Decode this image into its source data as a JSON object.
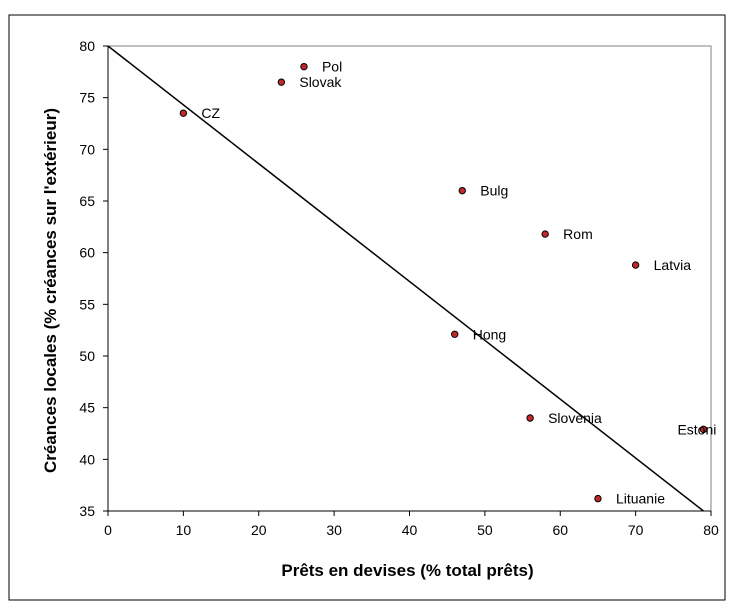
{
  "chart_data": {
    "type": "scatter",
    "title": "",
    "xlabel": "Prêts en devises (% total prêts)",
    "ylabel": "Créances locales (% créances sur l'extérieur)",
    "xlim": [
      0,
      80
    ],
    "ylim": [
      35,
      80
    ],
    "xticks": [
      "0",
      "10",
      "20",
      "30",
      "40",
      "50",
      "60",
      "70",
      "80"
    ],
    "yticks": [
      "35",
      "40",
      "45",
      "50",
      "55",
      "60",
      "65",
      "70",
      "75",
      "80"
    ],
    "grid": false,
    "legend": "none",
    "marker_color": "#c0282a",
    "line_color": "#000000",
    "points": [
      {
        "label": "Pol",
        "x": 26,
        "y": 78
      },
      {
        "label": "Slovak",
        "x": 23,
        "y": 76.5
      },
      {
        "label": "CZ",
        "x": 10,
        "y": 73.5
      },
      {
        "label": "Bulg",
        "x": 47,
        "y": 66
      },
      {
        "label": "Rom",
        "x": 58,
        "y": 61.8
      },
      {
        "label": "Latvia",
        "x": 70,
        "y": 58.8
      },
      {
        "label": "Hong",
        "x": 46,
        "y": 52.1
      },
      {
        "label": "Slovenia",
        "x": 56,
        "y": 44
      },
      {
        "label": "Estoni",
        "x": 79,
        "y": 42.9
      },
      {
        "label": "Lituanie",
        "x": 65,
        "y": 36.2
      }
    ],
    "trendline": {
      "x": [
        0,
        79
      ],
      "y": [
        80,
        35
      ]
    }
  }
}
